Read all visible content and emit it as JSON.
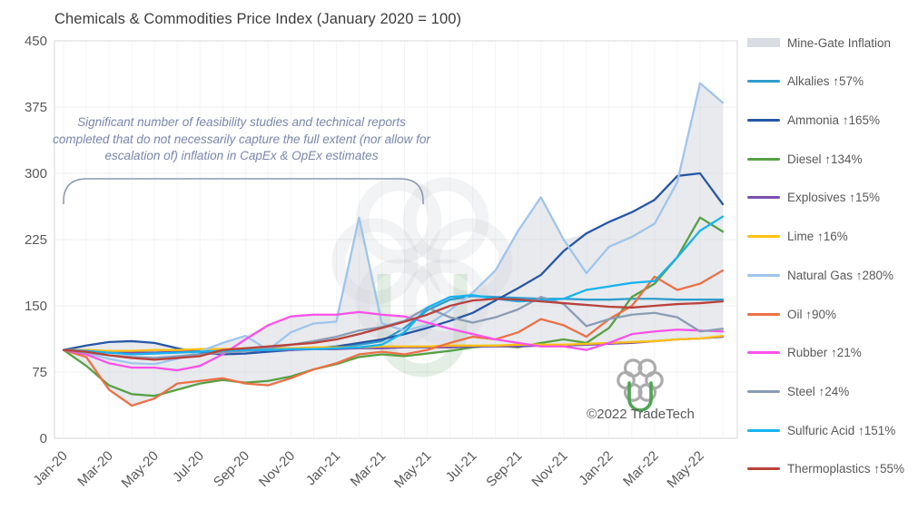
{
  "title": "Chemicals & Commodities Price Index (January 2020 = 100)",
  "annotation": {
    "text": "Significant number of feasibility studies and technical reports completed that do not necessarily capture the full extent (nor allow for escalation of) inflation in CapEx & OpEx estimates"
  },
  "credit": "©2022 TradeTech",
  "chart_data": {
    "type": "line",
    "title": "Chemicals & Commodities Price Index (January 2020 = 100)",
    "ylim": [
      0,
      450
    ],
    "yticks": [
      0,
      75,
      150,
      225,
      300,
      375,
      450
    ],
    "grid": "horizontal-faint",
    "legend_position": "right",
    "x_months": [
      "Jan-20",
      "Feb-20",
      "Mar-20",
      "Apr-20",
      "May-20",
      "Jun-20",
      "Jul-20",
      "Aug-20",
      "Sep-20",
      "Oct-20",
      "Nov-20",
      "Dec-20",
      "Jan-21",
      "Feb-21",
      "Mar-21",
      "Apr-21",
      "May-21",
      "Jun-21",
      "Jul-21",
      "Aug-21",
      "Sep-21",
      "Oct-21",
      "Nov-21",
      "Dec-21",
      "Jan-22",
      "Feb-22",
      "Mar-22",
      "Apr-22",
      "May-22",
      "Jun-22"
    ],
    "x_tick_labels": [
      "Jan-20",
      "Mar-20",
      "May-20",
      "Jul-20",
      "Sep-20",
      "Nov-20",
      "Jan-21",
      "Mar-21",
      "May-21",
      "Jul-21",
      "Sep-21",
      "Nov-21",
      "Jan-22",
      "Mar-22",
      "May-22"
    ],
    "band": {
      "name": "Mine-Gate Inflation",
      "color": "#d9dde3",
      "fill": "rgba(203,209,218,0.45)",
      "derived": "min-max envelope of all series"
    },
    "series": [
      {
        "name": "Alkalies",
        "change": "↑57%",
        "color": "#2f9dcc",
        "values": [
          100,
          98,
          97,
          96,
          97,
          98,
          99,
          100,
          100,
          101,
          102,
          102,
          103,
          106,
          110,
          125,
          145,
          157,
          161,
          160,
          159,
          158,
          158,
          157,
          157,
          158,
          158,
          157,
          157,
          157
        ]
      },
      {
        "name": "Ammonia",
        "change": "↑165%",
        "color": "#2757a5",
        "values": [
          100,
          105,
          109,
          110,
          108,
          102,
          97,
          95,
          96,
          98,
          100,
          102,
          104,
          108,
          112,
          118,
          125,
          133,
          142,
          156,
          170,
          185,
          212,
          232,
          245,
          256,
          270,
          297,
          300,
          265
        ]
      },
      {
        "name": "Diesel",
        "change": "↑134%",
        "color": "#57a044",
        "values": [
          100,
          82,
          60,
          50,
          48,
          55,
          62,
          66,
          63,
          65,
          70,
          78,
          84,
          92,
          95,
          93,
          96,
          99,
          103,
          105,
          103,
          108,
          112,
          108,
          125,
          160,
          175,
          205,
          250,
          234
        ]
      },
      {
        "name": "Explosives",
        "change": "↑15%",
        "color": "#7c4fae",
        "values": [
          100,
          99,
          98,
          97,
          97,
          98,
          98,
          99,
          99,
          100,
          100,
          101,
          101,
          102,
          102,
          103,
          103,
          103,
          104,
          104,
          104,
          105,
          105,
          106,
          107,
          108,
          110,
          112,
          113,
          115
        ]
      },
      {
        "name": "Lime",
        "change": "↑16%",
        "color": "#fdc013",
        "values": [
          100,
          100,
          99,
          99,
          100,
          100,
          101,
          101,
          102,
          102,
          102,
          103,
          103,
          103,
          104,
          104,
          104,
          105,
          105,
          105,
          106,
          106,
          106,
          107,
          108,
          109,
          110,
          112,
          113,
          116
        ]
      },
      {
        "name": "Natural Gas",
        "change": "↑280%",
        "color": "#9fc5ec",
        "values": [
          100,
          96,
          90,
          85,
          84,
          90,
          98,
          108,
          116,
          100,
          120,
          130,
          132,
          250,
          130,
          122,
          128,
          145,
          165,
          190,
          235,
          273,
          225,
          187,
          217,
          228,
          243,
          290,
          402,
          380
        ]
      },
      {
        "name": "Oil",
        "change": "↑90%",
        "color": "#ec7045",
        "values": [
          100,
          92,
          55,
          37,
          45,
          62,
          65,
          68,
          62,
          60,
          68,
          78,
          85,
          95,
          98,
          95,
          100,
          108,
          115,
          112,
          120,
          135,
          128,
          115,
          135,
          150,
          183,
          168,
          175,
          190
        ]
      },
      {
        "name": "Rubber",
        "change": "↑21%",
        "color": "#fb52e8",
        "values": [
          100,
          95,
          85,
          80,
          80,
          77,
          82,
          95,
          112,
          128,
          138,
          140,
          140,
          143,
          140,
          138,
          131,
          124,
          118,
          112,
          108,
          104,
          104,
          100,
          108,
          118,
          121,
          123,
          122,
          121
        ]
      },
      {
        "name": "Steel",
        "change": "↑24%",
        "color": "#8b9cb4",
        "values": [
          100,
          97,
          94,
          92,
          91,
          93,
          95,
          97,
          99,
          102,
          106,
          110,
          115,
          122,
          126,
          133,
          148,
          137,
          131,
          137,
          146,
          160,
          152,
          127,
          135,
          140,
          142,
          137,
          121,
          124
        ]
      },
      {
        "name": "Sulfuric Acid",
        "change": "↑151%",
        "color": "#17b3ef",
        "values": [
          100,
          99,
          97,
          95,
          96,
          97,
          98,
          99,
          100,
          100,
          101,
          101,
          102,
          103,
          106,
          120,
          148,
          160,
          162,
          158,
          155,
          156,
          158,
          168,
          172,
          176,
          178,
          205,
          235,
          251
        ]
      },
      {
        "name": "Thermoplastics",
        "change": "↑55%",
        "color": "#b9423b",
        "values": [
          100,
          98,
          94,
          91,
          89,
          91,
          93,
          100,
          102,
          104,
          106,
          108,
          112,
          118,
          125,
          132,
          140,
          150,
          156,
          158,
          157,
          155,
          153,
          151,
          149,
          148,
          150,
          152,
          153,
          155
        ]
      }
    ]
  }
}
